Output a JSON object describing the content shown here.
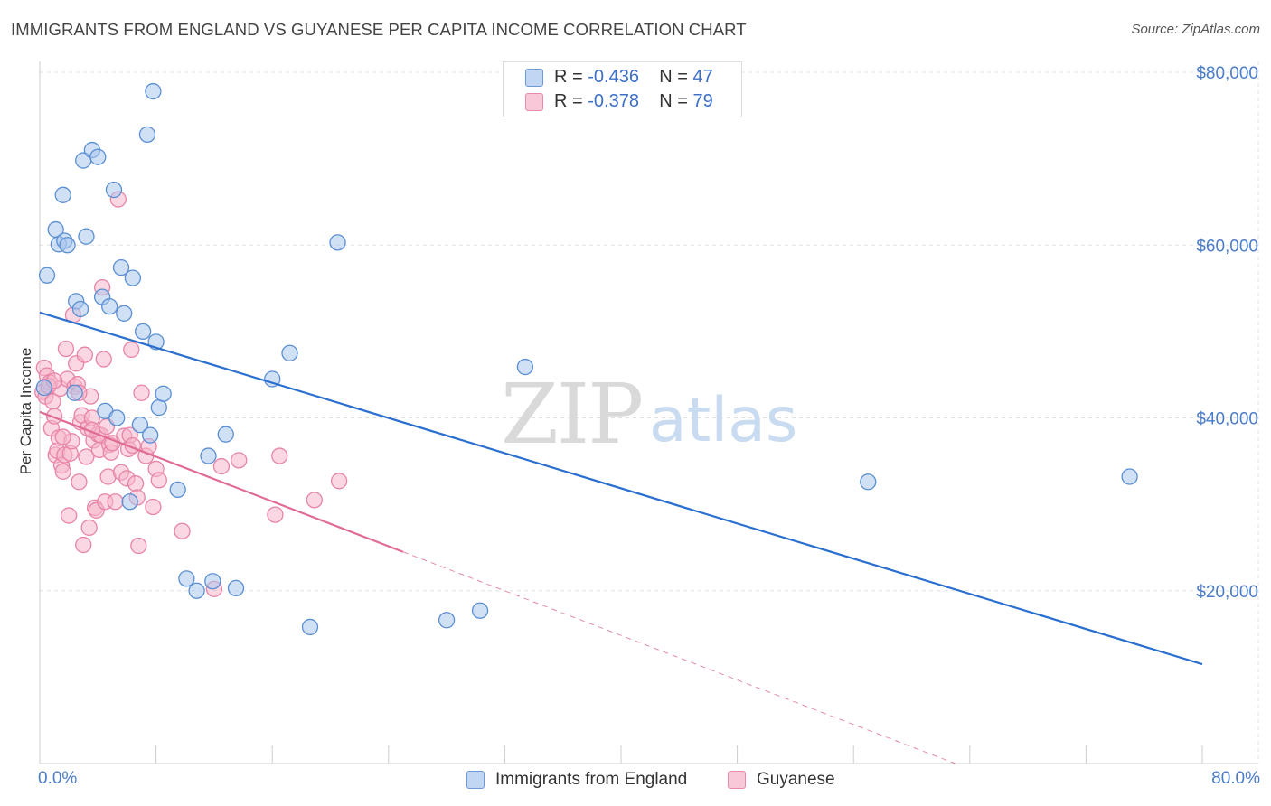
{
  "title": "IMMIGRANTS FROM ENGLAND VS GUYANESE PER CAPITA INCOME CORRELATION CHART",
  "source": "Source: ZipAtlas.com",
  "watermark": {
    "zip": "ZIP",
    "atlas": "atlas"
  },
  "stats": {
    "england": {
      "r_label": "R = ",
      "r": "-0.436",
      "n_label": "N = ",
      "n": "47"
    },
    "guyanese": {
      "r_label": "R = ",
      "r": "-0.378",
      "n_label": "N = ",
      "n": "79"
    }
  },
  "legend": {
    "england": "Immigrants from England",
    "guyanese": "Guyanese"
  },
  "colors": {
    "england_fill": "#a9c6ec",
    "england_stroke": "#5b8fd4",
    "england_line": "#2a6fcf",
    "guyanese_fill": "#f6b7cb",
    "guyanese_stroke": "#e884a6",
    "guyanese_line": "#e06b96",
    "grid": "#e0e0e0",
    "tick_text": "#4a7cc9"
  },
  "chart_data": {
    "type": "scatter",
    "title": "IMMIGRANTS FROM ENGLAND VS GUYANESE PER CAPITA INCOME CORRELATION CHART",
    "xlabel": "",
    "ylabel": "Per Capita Income",
    "xlim": [
      0,
      80
    ],
    "ylim": [
      0,
      80000
    ],
    "x_tick_labels": [
      "0.0%",
      "80.0%"
    ],
    "y_ticks": [
      20000,
      40000,
      60000,
      80000
    ],
    "y_tick_labels": [
      "$20,000",
      "$40,000",
      "$60,000",
      "$80,000"
    ],
    "grid": true,
    "legend_position": "bottom-center",
    "series": [
      {
        "name": "Immigrants from England",
        "R": -0.436,
        "N": 47,
        "trend": {
          "x": [
            0,
            80
          ],
          "y": [
            52200,
            11500
          ],
          "dashed_to": null
        },
        "points": [
          [
            0.5,
            56500
          ],
          [
            1.1,
            61800
          ],
          [
            1.3,
            60100
          ],
          [
            1.6,
            65800
          ],
          [
            1.7,
            60500
          ],
          [
            1.9,
            60000
          ],
          [
            2.4,
            42900
          ],
          [
            2.5,
            53500
          ],
          [
            2.8,
            52600
          ],
          [
            3.0,
            69800
          ],
          [
            3.2,
            61000
          ],
          [
            3.6,
            71000
          ],
          [
            4.0,
            70200
          ],
          [
            4.3,
            54000
          ],
          [
            4.5,
            40800
          ],
          [
            4.8,
            52900
          ],
          [
            5.1,
            66400
          ],
          [
            5.3,
            40000
          ],
          [
            5.6,
            57400
          ],
          [
            5.8,
            52100
          ],
          [
            6.2,
            30300
          ],
          [
            6.4,
            56200
          ],
          [
            6.9,
            39200
          ],
          [
            7.1,
            50000
          ],
          [
            7.4,
            72800
          ],
          [
            7.6,
            38000
          ],
          [
            7.8,
            77800
          ],
          [
            8.0,
            48800
          ],
          [
            8.2,
            41200
          ],
          [
            8.5,
            42800
          ],
          [
            9.5,
            31700
          ],
          [
            10.1,
            21400
          ],
          [
            10.8,
            20000
          ],
          [
            11.6,
            35600
          ],
          [
            11.9,
            21100
          ],
          [
            12.8,
            38100
          ],
          [
            13.5,
            20300
          ],
          [
            16.0,
            44500
          ],
          [
            17.2,
            47500
          ],
          [
            18.6,
            15800
          ],
          [
            20.5,
            60300
          ],
          [
            28.0,
            16600
          ],
          [
            30.3,
            17700
          ],
          [
            33.4,
            45900
          ],
          [
            57.0,
            32600
          ],
          [
            75.0,
            33200
          ],
          [
            0.3,
            43500
          ]
        ]
      },
      {
        "name": "Guyanese",
        "R": -0.378,
        "N": 79,
        "trend": {
          "x": [
            0,
            25
          ],
          "y": [
            40700,
            24500
          ],
          "dashed_to": [
            63,
            0
          ]
        },
        "points": [
          [
            0.2,
            43000
          ],
          [
            0.3,
            45800
          ],
          [
            0.4,
            42500
          ],
          [
            0.5,
            44900
          ],
          [
            0.7,
            44100
          ],
          [
            0.8,
            38800
          ],
          [
            0.9,
            41900
          ],
          [
            1.0,
            40200
          ],
          [
            1.1,
            35700
          ],
          [
            1.2,
            36200
          ],
          [
            1.3,
            37700
          ],
          [
            1.4,
            43400
          ],
          [
            1.5,
            34500
          ],
          [
            1.6,
            33800
          ],
          [
            1.7,
            35700
          ],
          [
            1.8,
            48000
          ],
          [
            1.9,
            44500
          ],
          [
            2.0,
            28700
          ],
          [
            2.1,
            35900
          ],
          [
            2.2,
            37300
          ],
          [
            2.3,
            51900
          ],
          [
            2.4,
            43600
          ],
          [
            2.5,
            46300
          ],
          [
            2.6,
            43900
          ],
          [
            2.7,
            32600
          ],
          [
            2.8,
            39500
          ],
          [
            2.9,
            40300
          ],
          [
            3.0,
            25300
          ],
          [
            3.1,
            47300
          ],
          [
            3.2,
            35500
          ],
          [
            3.3,
            38800
          ],
          [
            3.4,
            27300
          ],
          [
            3.5,
            42500
          ],
          [
            3.6,
            40000
          ],
          [
            3.7,
            37400
          ],
          [
            3.8,
            29600
          ],
          [
            3.9,
            29300
          ],
          [
            4.0,
            38100
          ],
          [
            4.1,
            36300
          ],
          [
            4.2,
            38000
          ],
          [
            4.3,
            55100
          ],
          [
            4.4,
            46800
          ],
          [
            4.5,
            30300
          ],
          [
            4.6,
            39000
          ],
          [
            4.7,
            33200
          ],
          [
            4.8,
            36900
          ],
          [
            4.9,
            36000
          ],
          [
            5.0,
            37100
          ],
          [
            5.2,
            30300
          ],
          [
            5.4,
            65300
          ],
          [
            5.6,
            33700
          ],
          [
            5.8,
            37900
          ],
          [
            6.0,
            33000
          ],
          [
            6.1,
            36400
          ],
          [
            6.2,
            38000
          ],
          [
            6.3,
            47900
          ],
          [
            6.4,
            36800
          ],
          [
            6.6,
            32400
          ],
          [
            6.7,
            30800
          ],
          [
            6.8,
            25200
          ],
          [
            7.0,
            42900
          ],
          [
            7.3,
            35600
          ],
          [
            7.5,
            36700
          ],
          [
            7.8,
            29700
          ],
          [
            8.0,
            34100
          ],
          [
            8.2,
            32800
          ],
          [
            9.8,
            26900
          ],
          [
            12.0,
            20200
          ],
          [
            12.5,
            34400
          ],
          [
            13.7,
            35100
          ],
          [
            16.2,
            28800
          ],
          [
            16.5,
            35600
          ],
          [
            18.9,
            30500
          ],
          [
            20.6,
            32700
          ],
          [
            0.6,
            43700
          ],
          [
            1.0,
            44300
          ],
          [
            1.6,
            37800
          ],
          [
            2.7,
            42900
          ],
          [
            3.6,
            38600
          ]
        ]
      }
    ]
  }
}
